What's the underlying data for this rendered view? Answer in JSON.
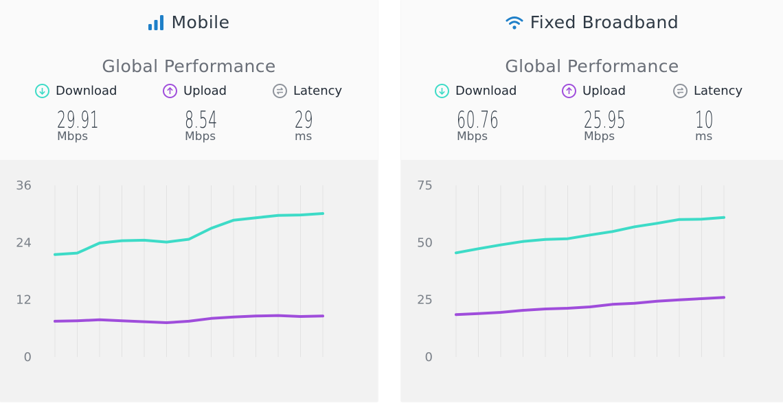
{
  "mobile": {
    "title": "Mobile",
    "icon": "signal-bars-icon",
    "subtitle": "Global Performance",
    "download": {
      "label": "Download",
      "value": "29.91",
      "unit": "Mbps"
    },
    "upload": {
      "label": "Upload",
      "value": "8.54",
      "unit": "Mbps"
    },
    "latency": {
      "label": "Latency",
      "value": "29",
      "unit": "ms"
    }
  },
  "fixed": {
    "title": "Fixed Broadband",
    "icon": "wifi-icon",
    "subtitle": "Global Performance",
    "download": {
      "label": "Download",
      "value": "60.76",
      "unit": "Mbps"
    },
    "upload": {
      "label": "Upload",
      "value": "25.95",
      "unit": "Mbps"
    },
    "latency": {
      "label": "Latency",
      "value": "10",
      "unit": "ms"
    }
  },
  "colors": {
    "download": "#3ddbc7",
    "upload": "#9f4ddb",
    "latency": "#8d929a",
    "title_icon": "#1e7fc8"
  },
  "chart_data": [
    {
      "type": "line",
      "title": "",
      "xlabel": "",
      "ylabel": "",
      "ylim": [
        0,
        36
      ],
      "yticks": [
        0,
        12,
        24,
        36
      ],
      "grid": "vertical",
      "x": [
        1,
        2,
        3,
        4,
        5,
        6,
        7,
        8,
        9,
        10,
        11,
        12,
        13
      ],
      "series": [
        {
          "name": "Download",
          "values": [
            21.5,
            21.8,
            23.9,
            24.4,
            24.5,
            24.1,
            24.7,
            27.0,
            28.7,
            29.2,
            29.7,
            29.8,
            30.1
          ]
        },
        {
          "name": "Upload",
          "values": [
            7.5,
            7.6,
            7.8,
            7.6,
            7.4,
            7.2,
            7.5,
            8.1,
            8.4,
            8.6,
            8.7,
            8.5,
            8.6
          ]
        }
      ]
    },
    {
      "type": "line",
      "title": "",
      "xlabel": "",
      "ylabel": "",
      "ylim": [
        0,
        75
      ],
      "yticks": [
        0,
        25,
        50,
        75
      ],
      "grid": "vertical",
      "x": [
        1,
        2,
        3,
        4,
        5,
        6,
        7,
        8,
        9,
        10,
        11,
        12,
        13
      ],
      "series": [
        {
          "name": "Download",
          "values": [
            45.5,
            47.3,
            49.0,
            50.5,
            51.4,
            51.7,
            53.3,
            54.8,
            56.9,
            58.4,
            60.1,
            60.2,
            61.0
          ]
        },
        {
          "name": "Upload",
          "values": [
            18.5,
            19.0,
            19.5,
            20.4,
            21.0,
            21.3,
            21.9,
            23.0,
            23.5,
            24.4,
            25.0,
            25.5,
            26.0
          ]
        }
      ]
    }
  ]
}
